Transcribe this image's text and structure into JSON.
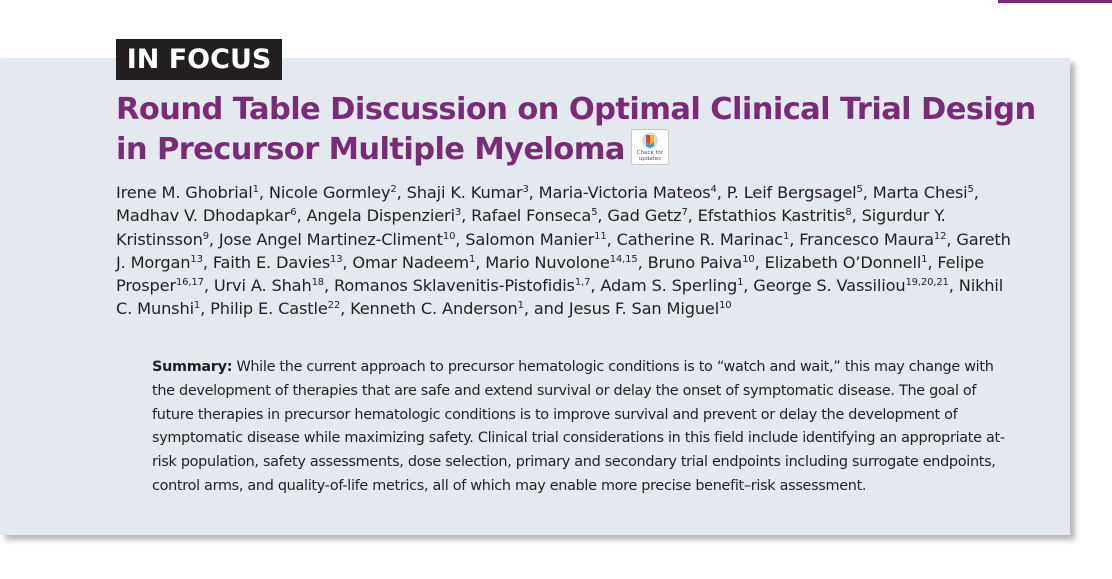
{
  "section_label": "IN FOCUS",
  "title": "Round Table Discussion on Optimal Clinical Trial Design in Precursor Multiple Myeloma",
  "crossmark_text": "Check for updates",
  "authors": [
    {
      "name": "Irene M. Ghobrial",
      "aff": "1"
    },
    {
      "name": "Nicole Gormley",
      "aff": "2"
    },
    {
      "name": "Shaji K. Kumar",
      "aff": "3"
    },
    {
      "name": "Maria-Victoria Mateos",
      "aff": "4"
    },
    {
      "name": "P. Leif Bergsagel",
      "aff": "5"
    },
    {
      "name": "Marta Chesi",
      "aff": "5"
    },
    {
      "name": "Madhav V. Dhodapkar",
      "aff": "6"
    },
    {
      "name": "Angela Dispenzieri",
      "aff": "3"
    },
    {
      "name": "Rafael Fonseca",
      "aff": "5"
    },
    {
      "name": "Gad Getz",
      "aff": "7"
    },
    {
      "name": "Efstathios Kastritis",
      "aff": "8"
    },
    {
      "name": "Sigurdur Y. Kristinsson",
      "aff": "9"
    },
    {
      "name": "Jose Angel Martinez-Climent",
      "aff": "10"
    },
    {
      "name": "Salomon Manier",
      "aff": "11"
    },
    {
      "name": "Catherine R. Marinac",
      "aff": "1"
    },
    {
      "name": "Francesco Maura",
      "aff": "12"
    },
    {
      "name": "Gareth J. Morgan",
      "aff": "13"
    },
    {
      "name": "Faith E. Davies",
      "aff": "13"
    },
    {
      "name": "Omar Nadeem",
      "aff": "1"
    },
    {
      "name": "Mario Nuvolone",
      "aff": "14,15"
    },
    {
      "name": "Bruno Paiva",
      "aff": "10"
    },
    {
      "name": "Elizabeth O’Donnell",
      "aff": "1"
    },
    {
      "name": "Felipe Prosper",
      "aff": "16,17"
    },
    {
      "name": "Urvi A. Shah",
      "aff": "18"
    },
    {
      "name": "Romanos Sklavenitis-Pistofidis",
      "aff": "1,7"
    },
    {
      "name": "Adam S. Sperling",
      "aff": "1"
    },
    {
      "name": "George S. Vassiliou",
      "aff": "19,20,21"
    },
    {
      "name": "Nikhil C. Munshi",
      "aff": "1"
    },
    {
      "name": "Philip E. Castle",
      "aff": "22"
    },
    {
      "name": "Kenneth C. Anderson",
      "aff": "1"
    },
    {
      "name": "Jesus F. San Miguel",
      "aff": "10"
    }
  ],
  "author_separator": ", ",
  "author_last_separator": ", and ",
  "summary_label": "Summary:",
  "summary_text": "While the current approach to precursor hematologic conditions is to “watch and wait,” this may change with the development of therapies that are safe and extend survival or delay the onset of symptomatic disease. The goal of future therapies in precursor hematologic conditions is to improve survival and prevent or delay the development of symptomatic disease while maximizing safety. Clinical trial considerations in this field include identifying an appropriate at-risk population, safety assessments, dose selection, primary and secondary trial endpoints including surrogate endpoints, control arms, and quality-of-life metrics, all of which may enable more precise benefit–risk assessment.",
  "colors": {
    "accent": "#7a2b78",
    "panel": "#e4e9ef",
    "badge": "#231f20",
    "text": "#231f20"
  }
}
